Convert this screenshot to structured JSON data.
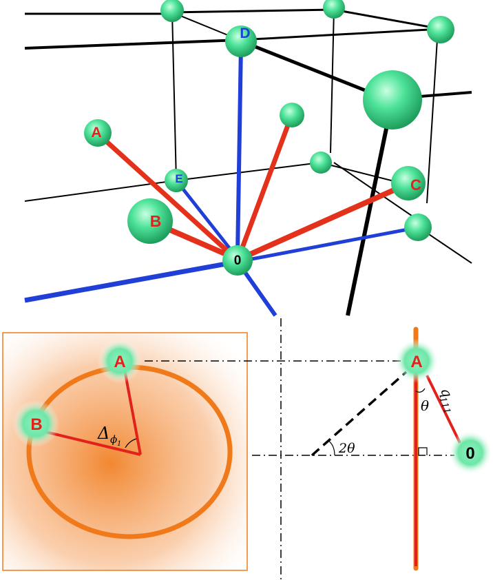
{
  "top_panel": {
    "nodes": {
      "A": "A",
      "B": "B",
      "C": "C",
      "D": "D",
      "E": "E",
      "origin": "0"
    }
  },
  "bottom_left": {
    "node_a": "A",
    "node_b": "B",
    "angle_label": "Δ",
    "angle_sub": "ϕ",
    "angle_sub2": "1"
  },
  "bottom_right": {
    "node_a": "A",
    "node_origin": "0",
    "theta_label": "θ",
    "two_theta_label": "2θ",
    "q_label": "q",
    "q_sub": "111"
  },
  "colors": {
    "node_fill": "#3ddc8a",
    "red_line": "#e3211c",
    "orange": "#f07a1a",
    "blue_line": "#1f3fd6",
    "label_red": "#e3211c",
    "label_blue": "#1f3fd6"
  }
}
